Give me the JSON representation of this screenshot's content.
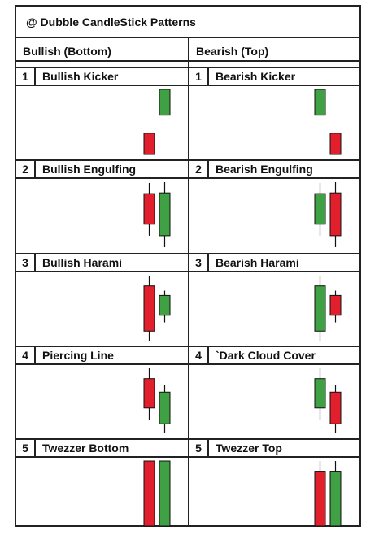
{
  "title": "@ Dubble CandleStick Patterns",
  "columns": [
    {
      "heading": "Bullish (Bottom)",
      "patterns": [
        {
          "number": "1",
          "name": "Bullish Kicker"
        },
        {
          "number": "2",
          "name": "Bullish Engulfing"
        },
        {
          "number": "3",
          "name": "Bullish Harami"
        },
        {
          "number": "4",
          "name": "Piercing Line"
        },
        {
          "number": "5",
          "name": "Twezzer Bottom"
        }
      ]
    },
    {
      "heading": "Bearish (Top)",
      "patterns": [
        {
          "number": "1",
          "name": "Bearish Kicker"
        },
        {
          "number": "2",
          "name": "Bearish Engulfing"
        },
        {
          "number": "3",
          "name": "Bearish Harami"
        },
        {
          "number": "4",
          "name": "`Dark Cloud Cover"
        },
        {
          "number": "5",
          "name": "Twezzer Top"
        }
      ]
    }
  ],
  "candles": [
    [
      [
        {
          "color": "red",
          "open": 75,
          "close": 42,
          "high": 75,
          "low": 42
        },
        {
          "color": "green",
          "open": 103,
          "close": 143,
          "high": 143,
          "low": 103
        }
      ],
      [
        {
          "color": "red",
          "open": 83,
          "close": 43,
          "high": 97,
          "low": 28
        },
        {
          "color": "green",
          "open": 28,
          "close": 84,
          "high": 98,
          "low": 13
        }
      ],
      [
        {
          "color": "red",
          "open": 85,
          "close": 28,
          "high": 98,
          "low": 16
        },
        {
          "color": "green",
          "open": 48,
          "close": 73,
          "high": 79,
          "low": 39
        }
      ],
      [
        {
          "color": "red",
          "open": 82,
          "close": 45,
          "high": 95,
          "low": 30
        },
        {
          "color": "green",
          "open": 25,
          "close": 65,
          "high": 74,
          "low": 13
        }
      ],
      [
        {
          "color": "red",
          "open": 77,
          "close": 18,
          "high": 77,
          "low": 18
        },
        {
          "color": "green",
          "open": 18,
          "close": 77,
          "high": 77,
          "low": 18
        }
      ]
    ],
    [
      [
        {
          "color": "green",
          "open": 103,
          "close": 143,
          "high": 143,
          "low": 103
        },
        {
          "color": "red",
          "open": 75,
          "close": 42,
          "high": 75,
          "low": 42
        }
      ],
      [
        {
          "color": "green",
          "open": 43,
          "close": 83,
          "high": 97,
          "low": 28
        },
        {
          "color": "red",
          "open": 84,
          "close": 28,
          "high": 98,
          "low": 13
        }
      ],
      [
        {
          "color": "green",
          "open": 28,
          "close": 85,
          "high": 98,
          "low": 16
        },
        {
          "color": "red",
          "open": 73,
          "close": 48,
          "high": 79,
          "low": 39
        }
      ],
      [
        {
          "color": "green",
          "open": 45,
          "close": 82,
          "high": 95,
          "low": 30
        },
        {
          "color": "red",
          "open": 65,
          "close": 25,
          "high": 74,
          "low": 13
        }
      ],
      [
        {
          "color": "red",
          "open": 18,
          "close": 77,
          "high": 88,
          "low": 18
        },
        {
          "color": "green",
          "open": 77,
          "close": 18,
          "high": 88,
          "low": 18
        }
      ]
    ]
  ],
  "colors": {
    "red": "#e2202d",
    "green": "#3fa044",
    "border": "#222222"
  }
}
